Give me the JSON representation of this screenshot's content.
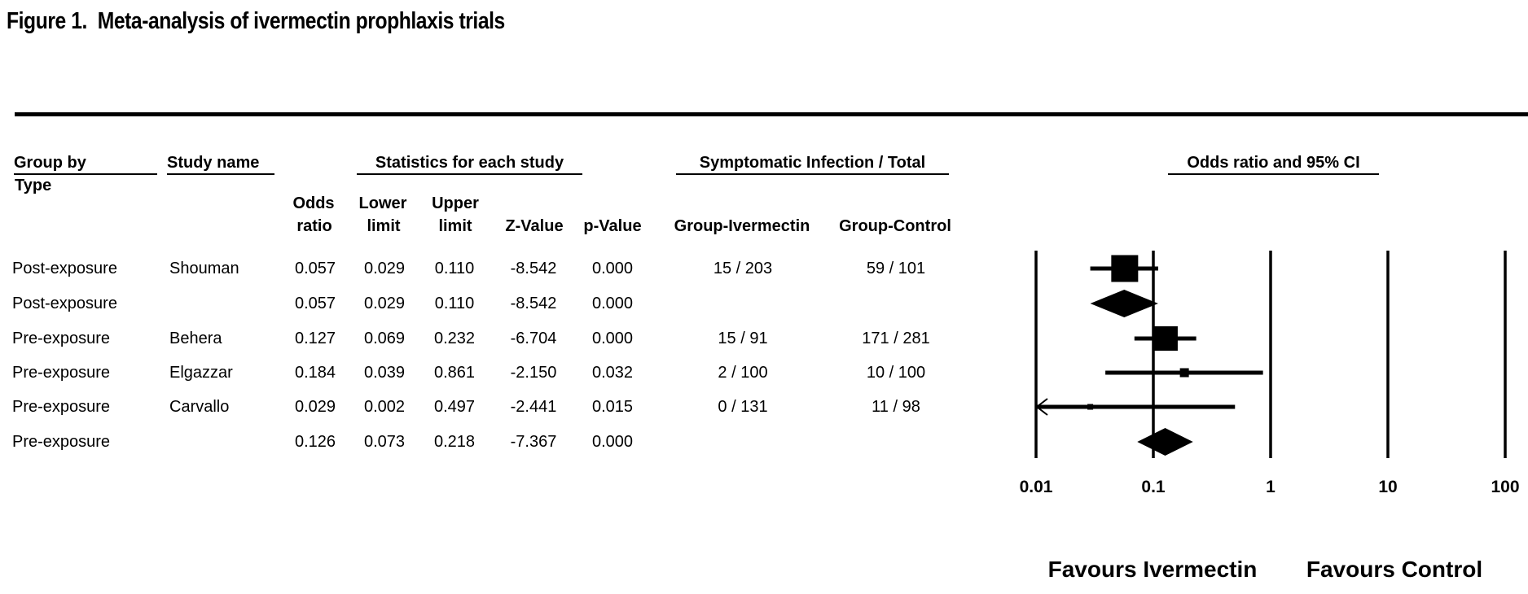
{
  "figure": {
    "title": "Figure 1.  Meta-analysis of ivermectin prophlaxis trials"
  },
  "table": {
    "group_header": {
      "line1": "Group by",
      "line2": "Type"
    },
    "study_header": "Study name",
    "stats_header": "Statistics for each study",
    "infection_header": "Symptomatic Infection / Total",
    "plot_header": "Odds ratio and 95% CI",
    "columns": {
      "odds": [
        "Odds",
        "ratio"
      ],
      "lower": [
        "Lower",
        "limit"
      ],
      "upper": [
        "Upper",
        "limit"
      ],
      "z": "Z-Value",
      "p": "p-Value",
      "ivermectin": "Group-Ivermectin",
      "control": "Group-Control"
    },
    "rows": [
      {
        "group": "Post-exposure",
        "study": "Shouman",
        "odds": "0.057",
        "lower": "0.029",
        "upper": "0.110",
        "z": "-8.542",
        "p": "0.000",
        "ivermectin": "15 / 203",
        "control": "59 / 101"
      },
      {
        "group": "Post-exposure",
        "study": "",
        "odds": "0.057",
        "lower": "0.029",
        "upper": "0.110",
        "z": "-8.542",
        "p": "0.000",
        "ivermectin": "",
        "control": ""
      },
      {
        "group": "Pre-exposure",
        "study": "Behera",
        "odds": "0.127",
        "lower": "0.069",
        "upper": "0.232",
        "z": "-6.704",
        "p": "0.000",
        "ivermectin": "15 / 91",
        "control": "171 / 281"
      },
      {
        "group": "Pre-exposure",
        "study": "Elgazzar",
        "odds": "0.184",
        "lower": "0.039",
        "upper": "0.861",
        "z": "-2.150",
        "p": "0.032",
        "ivermectin": "2 / 100",
        "control": "10 / 100"
      },
      {
        "group": "Pre-exposure",
        "study": "Carvallo",
        "odds": "0.029",
        "lower": "0.002",
        "upper": "0.497",
        "z": "-2.441",
        "p": "0.015",
        "ivermectin": "0 / 131",
        "control": "11 / 98"
      },
      {
        "group": "Pre-exposure",
        "study": "",
        "odds": "0.126",
        "lower": "0.073",
        "upper": "0.218",
        "z": "-7.367",
        "p": "0.000",
        "ivermectin": "",
        "control": ""
      }
    ]
  },
  "chart_data": {
    "type": "forest",
    "title": "Odds ratio and 95% CI",
    "x_scale": "log10",
    "xlim": [
      0.01,
      100
    ],
    "x_ticks": [
      0.01,
      0.1,
      1,
      10,
      100
    ],
    "x_tick_labels": [
      "0.01",
      "0.1",
      "1",
      "10",
      "100"
    ],
    "footer_left": "Favours Ivermectin",
    "footer_right": "Favours Control",
    "colors": {
      "marker": "#000000",
      "line": "#000000",
      "background": "#ffffff"
    },
    "points": [
      {
        "label": "Shouman (Post-exposure)",
        "or": 0.057,
        "lower": 0.029,
        "upper": 0.11,
        "marker": "square",
        "size": 33
      },
      {
        "label": "Post-exposure summary",
        "or": 0.057,
        "lower": 0.029,
        "upper": 0.11,
        "marker": "diamond"
      },
      {
        "label": "Behera (Pre-exposure)",
        "or": 0.127,
        "lower": 0.069,
        "upper": 0.232,
        "marker": "square",
        "size": 30
      },
      {
        "label": "Elgazzar (Pre-exposure)",
        "or": 0.184,
        "lower": 0.039,
        "upper": 0.861,
        "marker": "square",
        "size": 11
      },
      {
        "label": "Carvallo (Pre-exposure)",
        "or": 0.029,
        "lower": 0.002,
        "upper": 0.497,
        "marker": "square",
        "size": 7,
        "clipped_left": true
      },
      {
        "label": "Pre-exposure summary",
        "or": 0.126,
        "lower": 0.073,
        "upper": 0.218,
        "marker": "diamond"
      }
    ]
  }
}
